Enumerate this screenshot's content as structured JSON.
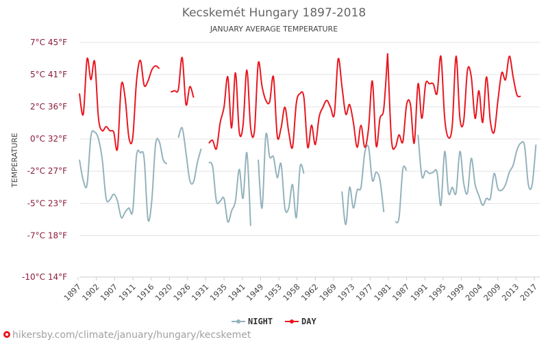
{
  "chart_data": {
    "type": "line",
    "title": "Kecskemét Hungary 1897-2018",
    "subtitle": "JANUARY AVERAGE TEMPERATURE",
    "ylabel": "TEMPERATURE",
    "ylim": [
      -10,
      7
    ],
    "y_ticks": [
      {
        "value": 7,
        "label": "7°C 45°F"
      },
      {
        "value": 4.67,
        "label": "5°C 41°F"
      },
      {
        "value": 2.33,
        "label": "2°C 36°F"
      },
      {
        "value": 0,
        "label": "0°C 32°F"
      },
      {
        "value": -2.33,
        "label": "-2°C 27°F"
      },
      {
        "value": -4.67,
        "label": "-5°C 23°F"
      },
      {
        "value": -7,
        "label": "-7°C 18°F"
      },
      {
        "value": -10,
        "label": "-10°C 14°F"
      }
    ],
    "x_range": [
      1897,
      2018
    ],
    "x_ticks": [
      "1897",
      "1902",
      "1907",
      "1911",
      "1916",
      "1920",
      "1926",
      "1931",
      "1935",
      "1941",
      "1949",
      "1953",
      "1958",
      "1962",
      "1969",
      "1973",
      "1977",
      "1981",
      "1987",
      "1991",
      "1995",
      "1999",
      "2004",
      "2009",
      "2013",
      "2017"
    ],
    "legend_position": "bottom",
    "grid": true,
    "series": [
      {
        "name": "NIGHT",
        "color": "#93b2bc",
        "segments": [
          [
            [
              1897,
              -1.5
            ],
            [
              1898,
              -3.0
            ],
            [
              1899,
              -3.3
            ],
            [
              1900,
              0.2
            ],
            [
              1901,
              0.5
            ],
            [
              1902,
              0.0
            ],
            [
              1903,
              -1.5
            ],
            [
              1904,
              -4.3
            ],
            [
              1905,
              -4.4
            ],
            [
              1906,
              -4.0
            ],
            [
              1907,
              -4.5
            ],
            [
              1908,
              -5.7
            ],
            [
              1909,
              -5.3
            ],
            [
              1910,
              -5.0
            ],
            [
              1911,
              -5.2
            ],
            [
              1912,
              -1.2
            ],
            [
              1913,
              -1.0
            ],
            [
              1914,
              -1.4
            ],
            [
              1915,
              -5.8
            ],
            [
              1916,
              -4.5
            ],
            [
              1917,
              -0.4
            ],
            [
              1918,
              -0.2
            ],
            [
              1919,
              -1.5
            ],
            [
              1920,
              -1.8
            ]
          ],
          [
            [
              1923,
              0.1
            ],
            [
              1924,
              0.8
            ],
            [
              1925,
              -1.0
            ],
            [
              1926,
              -3.0
            ],
            [
              1927,
              -3.1
            ],
            [
              1928,
              -1.7
            ],
            [
              1929,
              -0.7
            ]
          ],
          [
            [
              1931,
              -1.7
            ],
            [
              1932,
              -2.0
            ],
            [
              1933,
              -4.5
            ],
            [
              1934,
              -4.5
            ],
            [
              1935,
              -4.3
            ],
            [
              1936,
              -6.0
            ],
            [
              1937,
              -5.2
            ],
            [
              1938,
              -4.5
            ],
            [
              1939,
              -2.2
            ],
            [
              1940,
              -4.3
            ],
            [
              1941,
              -1.0
            ],
            [
              1942,
              -6.3
            ]
          ],
          [
            [
              1944,
              -1.5
            ],
            [
              1945,
              -5.0
            ],
            [
              1946,
              0.3
            ],
            [
              1947,
              -1.3
            ],
            [
              1948,
              -1.3
            ],
            [
              1949,
              -2.8
            ],
            [
              1950,
              -1.8
            ],
            [
              1951,
              -5.0
            ],
            [
              1952,
              -5.0
            ],
            [
              1953,
              -3.3
            ],
            [
              1954,
              -5.7
            ],
            [
              1955,
              -2.0
            ],
            [
              1956,
              -2.5
            ]
          ],
          [
            [
              1966,
              -3.8
            ],
            [
              1967,
              -6.2
            ],
            [
              1968,
              -3.5
            ],
            [
              1969,
              -5.0
            ],
            [
              1970,
              -3.7
            ],
            [
              1971,
              -3.5
            ],
            [
              1972,
              -1.0
            ],
            [
              1973,
              -0.6
            ],
            [
              1974,
              -3.0
            ],
            [
              1975,
              -2.4
            ],
            [
              1976,
              -3.0
            ],
            [
              1977,
              -5.3
            ]
          ],
          [
            [
              1980,
              -6.0
            ],
            [
              1981,
              -5.7
            ],
            [
              1982,
              -2.2
            ],
            [
              1983,
              -2.3
            ]
          ],
          [
            [
              1986,
              0.3
            ],
            [
              1987,
              -2.7
            ],
            [
              1988,
              -2.3
            ],
            [
              1989,
              -2.5
            ],
            [
              1990,
              -2.4
            ],
            [
              1991,
              -2.4
            ],
            [
              1992,
              -4.8
            ],
            [
              1993,
              -0.9
            ],
            [
              1994,
              -3.9
            ],
            [
              1995,
              -3.5
            ],
            [
              1996,
              -3.9
            ],
            [
              1997,
              -0.9
            ],
            [
              1998,
              -3.2
            ],
            [
              1999,
              -3.9
            ],
            [
              2000,
              -1.4
            ],
            [
              2001,
              -3.3
            ],
            [
              2002,
              -4.1
            ],
            [
              2003,
              -4.8
            ],
            [
              2004,
              -4.3
            ],
            [
              2005,
              -4.3
            ],
            [
              2006,
              -2.5
            ],
            [
              2007,
              -3.6
            ],
            [
              2008,
              -3.7
            ],
            [
              2009,
              -3.3
            ],
            [
              2010,
              -2.4
            ],
            [
              2011,
              -1.9
            ],
            [
              2012,
              -0.8
            ],
            [
              2013,
              -0.3
            ],
            [
              2014,
              -0.5
            ],
            [
              2015,
              -3.3
            ],
            [
              2016,
              -3.3
            ],
            [
              2017,
              -0.4
            ]
          ]
        ]
      },
      {
        "name": "DAY",
        "color": "#e8161e",
        "segments": [
          [
            [
              1897,
              3.3
            ],
            [
              1898,
              1.8
            ],
            [
              1899,
              5.8
            ],
            [
              1900,
              4.3
            ],
            [
              1901,
              5.6
            ],
            [
              1902,
              1.5
            ],
            [
              1903,
              0.6
            ],
            [
              1904,
              0.9
            ],
            [
              1905,
              0.6
            ],
            [
              1906,
              0.5
            ],
            [
              1907,
              -0.7
            ],
            [
              1908,
              3.9
            ],
            [
              1909,
              3.0
            ],
            [
              1910,
              0.1
            ],
            [
              1911,
              0.1
            ],
            [
              1912,
              4.2
            ],
            [
              1913,
              5.7
            ],
            [
              1914,
              3.9
            ],
            [
              1915,
              4.2
            ],
            [
              1916,
              5.0
            ],
            [
              1917,
              5.3
            ],
            [
              1918,
              5.1
            ]
          ],
          [
            [
              1921,
              3.4
            ],
            [
              1922,
              3.5
            ],
            [
              1923,
              3.6
            ],
            [
              1924,
              5.9
            ],
            [
              1925,
              2.5
            ],
            [
              1926,
              3.8
            ],
            [
              1927,
              3.0
            ]
          ],
          [
            [
              1931,
              -0.3
            ],
            [
              1932,
              -0.1
            ],
            [
              1933,
              -0.7
            ],
            [
              1934,
              1.2
            ],
            [
              1935,
              2.3
            ],
            [
              1936,
              4.5
            ],
            [
              1937,
              0.8
            ],
            [
              1938,
              4.8
            ],
            [
              1939,
              0.5
            ],
            [
              1940,
              1.0
            ],
            [
              1941,
              5.0
            ],
            [
              1942,
              0.8
            ],
            [
              1943,
              0.6
            ],
            [
              1944,
              5.5
            ],
            [
              1945,
              3.8
            ],
            [
              1946,
              2.8
            ],
            [
              1947,
              2.7
            ],
            [
              1948,
              4.5
            ],
            [
              1949,
              0.2
            ],
            [
              1950,
              0.8
            ],
            [
              1951,
              2.3
            ],
            [
              1952,
              0.5
            ],
            [
              1953,
              -0.6
            ],
            [
              1954,
              2.6
            ],
            [
              1955,
              3.3
            ],
            [
              1956,
              3.0
            ],
            [
              1957,
              -0.6
            ],
            [
              1958,
              1.0
            ],
            [
              1959,
              -0.4
            ],
            [
              1960,
              1.6
            ],
            [
              1961,
              2.3
            ],
            [
              1962,
              2.8
            ],
            [
              1963,
              2.3
            ],
            [
              1964,
              1.8
            ],
            [
              1965,
              5.8
            ],
            [
              1966,
              3.8
            ],
            [
              1967,
              1.8
            ],
            [
              1968,
              2.5
            ],
            [
              1969,
              1.2
            ],
            [
              1970,
              -0.6
            ],
            [
              1971,
              1.0
            ],
            [
              1972,
              -0.6
            ],
            [
              1973,
              0.8
            ],
            [
              1974,
              4.2
            ],
            [
              1975,
              -0.5
            ],
            [
              1976,
              1.5
            ],
            [
              1977,
              2.2
            ],
            [
              1978,
              6.2
            ]
          ],
          [
            [
              1978,
              6.2
            ],
            [
              1979,
              0.0
            ],
            [
              1980,
              -0.6
            ],
            [
              1981,
              0.3
            ],
            [
              1982,
              -0.2
            ],
            [
              1983,
              2.5
            ],
            [
              1984,
              2.5
            ],
            [
              1985,
              -0.3
            ],
            [
              1986,
              4.0
            ],
            [
              1987,
              1.5
            ],
            [
              1988,
              4.0
            ],
            [
              1989,
              4.0
            ],
            [
              1990,
              4.0
            ],
            [
              1991,
              3.3
            ],
            [
              1992,
              6.0
            ],
            [
              1993,
              1.5
            ],
            [
              1994,
              0.1
            ],
            [
              1995,
              1.0
            ],
            [
              1996,
              6.0
            ],
            [
              1997,
              1.5
            ],
            [
              1998,
              1.3
            ],
            [
              1999,
              5.0
            ],
            [
              2000,
              4.5
            ],
            [
              2001,
              1.5
            ],
            [
              2002,
              3.5
            ],
            [
              2003,
              1.2
            ],
            [
              2004,
              4.5
            ],
            [
              2005,
              1.3
            ],
            [
              2006,
              0.5
            ],
            [
              2007,
              2.8
            ],
            [
              2008,
              4.8
            ],
            [
              2009,
              4.3
            ],
            [
              2010,
              6.0
            ],
            [
              2011,
              4.5
            ],
            [
              2012,
              3.2
            ],
            [
              2013,
              3.1
            ]
          ]
        ]
      }
    ]
  },
  "watermark": "hikersby.com/climate/january/hungary/kecskemet"
}
